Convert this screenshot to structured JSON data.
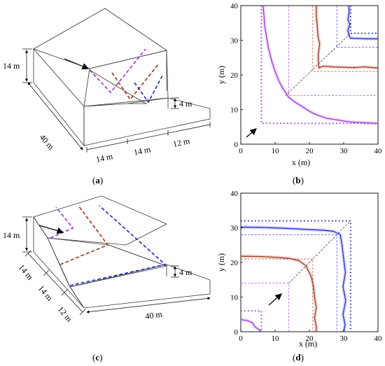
{
  "panels": {
    "a": {
      "caption_letter": "a",
      "dims": {
        "height": "14 m",
        "length": "40 m",
        "step1": "14 m",
        "step2": "14 m",
        "step3": "12 m",
        "rise": "4 m"
      }
    },
    "b": {
      "caption_letter": "b",
      "xlabel": "x (m)",
      "ylabel": "y (m)",
      "xticks": [
        "0",
        "10",
        "20",
        "30",
        "40"
      ],
      "yticks": [
        "0",
        "10",
        "20",
        "30",
        "40"
      ]
    },
    "c": {
      "caption_letter": "c",
      "dims": {
        "height": "14 m",
        "length": "40 m",
        "step1": "14 m",
        "step2": "14 m",
        "step3": "12 m",
        "rise": "4 m"
      }
    },
    "d": {
      "caption_letter": "d",
      "xlabel": "x (m)",
      "ylabel": "y (m)",
      "xticks": [
        "0",
        "10",
        "20",
        "30",
        "40"
      ],
      "yticks": [
        "0",
        "10",
        "20",
        "30",
        "40"
      ]
    }
  },
  "colors": {
    "purple": "#9b30d9",
    "brown": "#a0301a",
    "blue": "#1a24c8",
    "black": "#000000",
    "magenta": "#cc33cc"
  },
  "chart_data": [
    {
      "type": "line",
      "panel": "b",
      "xlim": [
        0,
        40
      ],
      "ylim": [
        0,
        40
      ],
      "series": [
        {
          "color": "purple",
          "x": [
            6.5,
            7,
            8,
            9,
            10,
            11,
            12,
            13,
            14,
            16,
            18,
            20,
            22,
            25,
            28,
            32,
            36,
            40
          ],
          "y": [
            40,
            34,
            28,
            24,
            21,
            18.5,
            16.5,
            15,
            13.5,
            12,
            10.8,
            9.5,
            8.5,
            7.5,
            7,
            6.4,
            6.2,
            6
          ]
        },
        {
          "color": "brown",
          "x": [
            22,
            22,
            22.3,
            22.5,
            23,
            22.6,
            22.6,
            22.8,
            24,
            27,
            30,
            33,
            36,
            40
          ],
          "y": [
            40,
            37,
            34,
            31,
            29,
            26,
            24,
            22,
            22.5,
            22.3,
            22.2,
            22.1,
            22.3,
            22
          ]
        },
        {
          "color": "blue",
          "x": [
            31.5,
            31.6,
            31.2,
            31.8,
            31.2,
            31.5,
            32,
            34,
            37,
            40
          ],
          "y": [
            40,
            38,
            36,
            34.5,
            33,
            31.5,
            30.6,
            30.5,
            30.4,
            30.4
          ]
        }
      ]
    },
    {
      "type": "line",
      "panel": "d",
      "xlim": [
        0,
        40
      ],
      "ylim": [
        0,
        40
      ],
      "series": [
        {
          "color": "purple",
          "x": [
            0,
            2,
            3.5,
            4,
            5,
            6
          ],
          "y": [
            3.5,
            3.2,
            2.5,
            1.5,
            0.8,
            0
          ]
        },
        {
          "color": "brown",
          "x": [
            0,
            6,
            10,
            14,
            17,
            19,
            20.5,
            21.2,
            21.5,
            22,
            21.5,
            22,
            22
          ],
          "y": [
            21.8,
            21.7,
            21.5,
            21.2,
            20.5,
            19,
            16,
            13,
            10,
            7,
            4,
            1.5,
            0
          ]
        },
        {
          "color": "blue",
          "x": [
            0,
            6,
            12,
            18,
            24,
            27,
            29,
            29.5,
            30,
            30.5,
            29.8,
            30.6,
            29.8,
            30.4,
            30
          ],
          "y": [
            30.2,
            30.1,
            29.9,
            29.6,
            29.3,
            29,
            28,
            25,
            21,
            17,
            13,
            9,
            5,
            2,
            0
          ]
        }
      ]
    }
  ]
}
